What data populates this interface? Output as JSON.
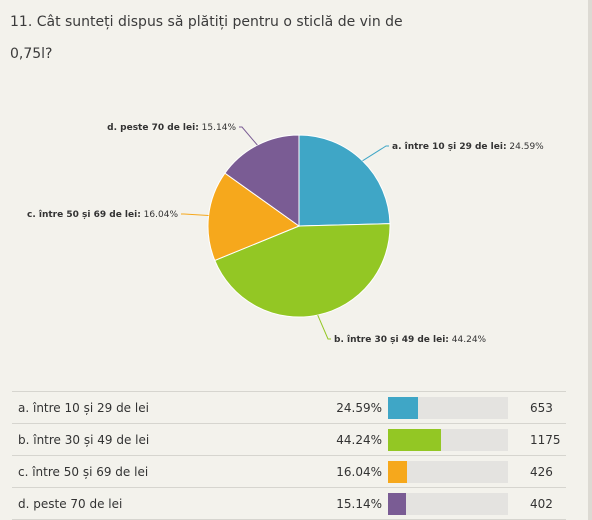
{
  "question": {
    "title": "11. Cât sunteți dispus să plătiți pentru o sticlă de vin de 0,75l?"
  },
  "chart_data": {
    "type": "pie",
    "title": "",
    "categories": [
      "a. între 10 și 29 de lei",
      "b. între 30 și 49 de lei",
      "c. între 50 și 69 de lei",
      "d. peste 70 de lei"
    ],
    "values": [
      24.59,
      44.24,
      16.04,
      15.14
    ],
    "counts": [
      653,
      1175,
      426,
      402
    ],
    "percent_labels": [
      "24.59%",
      "44.24%",
      "16.04%",
      "15.14%"
    ],
    "colors": [
      "#3fa6c6",
      "#93c724",
      "#f6a81c",
      "#7a5c94"
    ]
  }
}
